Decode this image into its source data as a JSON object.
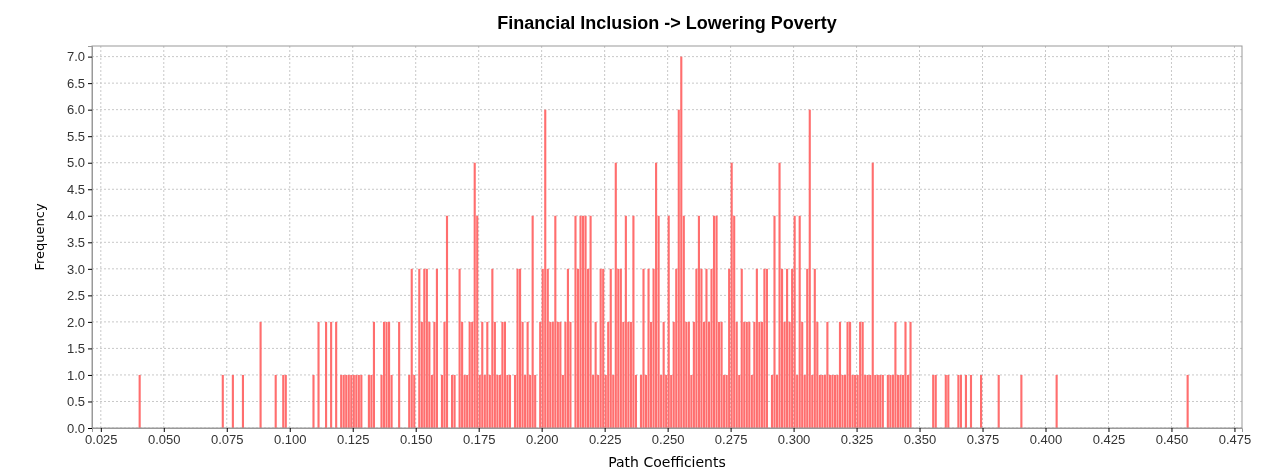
{
  "chart_data": {
    "type": "histogram",
    "title": "Financial Inclusion -> Lowering Poverty",
    "xlabel": "Path Coefficients",
    "ylabel": "Frequency",
    "color": "#ff6666",
    "grid": true,
    "xlim": [
      0.0215,
      0.478
    ],
    "ylim": [
      0,
      7.2
    ],
    "xticks": [
      0.025,
      {
        "value": 0.05,
        "label": "0.050"
      },
      0.075,
      {
        "value": 0.1,
        "label": "0.100"
      },
      0.125,
      {
        "value": 0.15,
        "label": "0.150"
      },
      0.175,
      {
        "value": 0.2,
        "label": "0.200"
      },
      0.225,
      {
        "value": 0.25,
        "label": "0.250"
      },
      0.275,
      {
        "value": 0.3,
        "label": "0.300"
      },
      0.325,
      {
        "value": 0.35,
        "label": "0.350"
      },
      0.375,
      {
        "value": 0.4,
        "label": "0.400"
      },
      0.425,
      {
        "value": 0.45,
        "label": "0.450"
      },
      0.475
    ],
    "yticks": [
      {
        "value": 0,
        "label": "0.0"
      },
      0.5,
      {
        "value": 1,
        "label": "1.0"
      },
      1.5,
      {
        "value": 2,
        "label": "2.0"
      },
      2.5,
      {
        "value": 3,
        "label": "3.0"
      },
      3.5,
      {
        "value": 4,
        "label": "4.0"
      },
      4.5,
      {
        "value": 5,
        "label": "5.0"
      },
      5.5,
      {
        "value": 6,
        "label": "6.0"
      },
      6.5,
      {
        "value": 7,
        "label": "7.0"
      }
    ],
    "bins": [
      0.04,
      0.041,
      0.042,
      0.043,
      0.044,
      0.045,
      0.046,
      0.047,
      0.048,
      0.049,
      0.05,
      0.051,
      0.052,
      0.053,
      0.054,
      0.055,
      0.056,
      0.057,
      0.058,
      0.059,
      0.06,
      0.061,
      0.062,
      0.063,
      0.064,
      0.065,
      0.066,
      0.067,
      0.068,
      0.069,
      0.07,
      0.071,
      0.072,
      0.073,
      0.074,
      0.075,
      0.076,
      0.077,
      0.078,
      0.079,
      0.08,
      0.081,
      0.082,
      0.083,
      0.084,
      0.085,
      0.086,
      0.087,
      0.088,
      0.089,
      0.09,
      0.091,
      0.092,
      0.093,
      0.094,
      0.095,
      0.096,
      0.097,
      0.098,
      0.099,
      0.1,
      0.101,
      0.102,
      0.103,
      0.104,
      0.105,
      0.106,
      0.107,
      0.108,
      0.109,
      0.11,
      0.111,
      0.112,
      0.113,
      0.114,
      0.115,
      0.116,
      0.117,
      0.118,
      0.119,
      0.12,
      0.121,
      0.122,
      0.123,
      0.124,
      0.125,
      0.126,
      0.127,
      0.128,
      0.129,
      0.13,
      0.131,
      0.132,
      0.133,
      0.134,
      0.135,
      0.136,
      0.137,
      0.138,
      0.139,
      0.14,
      0.141,
      0.142,
      0.143,
      0.144,
      0.145,
      0.146,
      0.147,
      0.148,
      0.149,
      0.15,
      0.151,
      0.152,
      0.153,
      0.154,
      0.155,
      0.156,
      0.157,
      0.158,
      0.159,
      0.16,
      0.161,
      0.162,
      0.163,
      0.164,
      0.165,
      0.166,
      0.167,
      0.168,
      0.169,
      0.17,
      0.171,
      0.172,
      0.173,
      0.174,
      0.175,
      0.176,
      0.177,
      0.178,
      0.179,
      0.18,
      0.181,
      0.182,
      0.183,
      0.184,
      0.185,
      0.186,
      0.187,
      0.188,
      0.189,
      0.19,
      0.191,
      0.192,
      0.193,
      0.194,
      0.195,
      0.196,
      0.197,
      0.198,
      0.199,
      0.2,
      0.201,
      0.202,
      0.203,
      0.204,
      0.205,
      0.206,
      0.207,
      0.208,
      0.209,
      0.21,
      0.211,
      0.212,
      0.213,
      0.214,
      0.215,
      0.216,
      0.217,
      0.218,
      0.219,
      0.22,
      0.221,
      0.222,
      0.223,
      0.224,
      0.225,
      0.226,
      0.227,
      0.228,
      0.229,
      0.23,
      0.231,
      0.232,
      0.233,
      0.234,
      0.235,
      0.236,
      0.237,
      0.238,
      0.239,
      0.24,
      0.241,
      0.242,
      0.243,
      0.244,
      0.245,
      0.246,
      0.247,
      0.248,
      0.249,
      0.25,
      0.251,
      0.252,
      0.253,
      0.254,
      0.255,
      0.256,
      0.257,
      0.258,
      0.259,
      0.26,
      0.261,
      0.262,
      0.263,
      0.264,
      0.265,
      0.266,
      0.267,
      0.268,
      0.269,
      0.27,
      0.271,
      0.272,
      0.273,
      0.274,
      0.275,
      0.276,
      0.277,
      0.278,
      0.279,
      0.28,
      0.281,
      0.282,
      0.283,
      0.284,
      0.285,
      0.286,
      0.287,
      0.288,
      0.289,
      0.29,
      0.291,
      0.292,
      0.293,
      0.294,
      0.295,
      0.296,
      0.297,
      0.298,
      0.299,
      0.3,
      0.301,
      0.302,
      0.303,
      0.304,
      0.305,
      0.306,
      0.307,
      0.308,
      0.309,
      0.31,
      0.311,
      0.312,
      0.313,
      0.314,
      0.315,
      0.316,
      0.317,
      0.318,
      0.319,
      0.32,
      0.321,
      0.322,
      0.323,
      0.324,
      0.325,
      0.326,
      0.327,
      0.328,
      0.329,
      0.33,
      0.331,
      0.332,
      0.333,
      0.334,
      0.335,
      0.336,
      0.337,
      0.338,
      0.339,
      0.34,
      0.341,
      0.342,
      0.343,
      0.344,
      0.345,
      0.346,
      0.347,
      0.348,
      0.349,
      0.35,
      0.351,
      0.352,
      0.353,
      0.354,
      0.355,
      0.356,
      0.357,
      0.358,
      0.359,
      0.36,
      0.361,
      0.362,
      0.363,
      0.364,
      0.365,
      0.366,
      0.367,
      0.368,
      0.369,
      0.37,
      0.371,
      0.372,
      0.373,
      0.374,
      0.375,
      0.376,
      0.377,
      0.378,
      0.379,
      0.38,
      0.381,
      0.382,
      0.383,
      0.384,
      0.385,
      0.386,
      0.387,
      0.388,
      0.389,
      0.39,
      0.391,
      0.392,
      0.393,
      0.394,
      0.395,
      0.396,
      0.397,
      0.398,
      0.399,
      0.4,
      0.401,
      0.402,
      0.403,
      0.404,
      0.405,
      0.406,
      0.407,
      0.408,
      0.409,
      0.41,
      0.411,
      0.412,
      0.413,
      0.414,
      0.415,
      0.416,
      0.417,
      0.418,
      0.419,
      0.42,
      0.421,
      0.422,
      0.423,
      0.424,
      0.425,
      0.426,
      0.427,
      0.428,
      0.429,
      0.43,
      0.431,
      0.432,
      0.433,
      0.434,
      0.435,
      0.436,
      0.437,
      0.438,
      0.439,
      0.44,
      0.441,
      0.442,
      0.443,
      0.444,
      0.445,
      0.446,
      0.447,
      0.448,
      0.449,
      0.45,
      0.451,
      0.452,
      0.453,
      0.454,
      0.455,
      0.456,
      0.457
    ],
    "values": [
      1,
      0,
      0,
      0,
      0,
      0,
      0,
      0,
      0,
      0,
      0,
      0,
      0,
      0,
      0,
      0,
      0,
      0,
      0,
      0,
      0,
      0,
      0,
      0,
      0,
      0,
      0,
      0,
      0,
      0,
      0,
      0,
      0,
      1,
      0,
      0,
      0,
      1,
      0,
      0,
      0,
      1,
      0,
      0,
      0,
      0,
      0,
      0,
      2,
      0,
      0,
      0,
      0,
      0,
      1,
      0,
      0,
      1,
      1,
      0,
      0,
      0,
      0,
      0,
      0,
      0,
      0,
      0,
      0,
      1,
      0,
      2,
      0,
      0,
      2,
      0,
      2,
      0,
      2,
      0,
      1,
      1,
      1,
      1,
      1,
      1,
      1,
      1,
      1,
      0,
      0,
      1,
      1,
      2,
      0,
      0,
      1,
      2,
      2,
      2,
      1,
      0,
      0,
      2,
      0,
      0,
      0,
      1,
      3,
      1,
      0,
      3,
      2,
      3,
      3,
      2,
      1,
      2,
      3,
      0,
      1,
      2,
      4,
      0,
      1,
      1,
      0,
      3,
      2,
      1,
      1,
      2,
      2,
      5,
      4,
      1,
      2,
      1,
      2,
      1,
      3,
      2,
      1,
      1,
      2,
      2,
      1,
      1,
      0,
      1,
      3,
      3,
      2,
      1,
      2,
      1,
      4,
      1,
      0,
      2,
      3,
      6,
      3,
      2,
      2,
      4,
      2,
      2,
      1,
      2,
      3,
      2,
      0,
      4,
      3,
      4,
      4,
      4,
      3,
      4,
      1,
      2,
      1,
      3,
      3,
      1,
      2,
      3,
      1,
      5,
      3,
      3,
      2,
      4,
      2,
      2,
      4,
      1,
      0,
      1,
      3,
      1,
      3,
      2,
      3,
      5,
      4,
      1,
      2,
      1,
      4,
      1,
      2,
      3,
      6,
      7,
      4,
      2,
      2,
      1,
      2,
      3,
      4,
      3,
      2,
      3,
      2,
      3,
      4,
      4,
      2,
      2,
      1,
      1,
      3,
      5,
      4,
      2,
      1,
      3,
      2,
      2,
      2,
      1,
      2,
      3,
      2,
      2,
      3,
      3,
      0,
      1,
      4,
      1,
      5,
      3,
      2,
      3,
      2,
      3,
      4,
      1,
      4,
      2,
      1,
      3,
      6,
      1,
      3,
      2,
      1,
      1,
      1,
      2,
      1,
      1,
      1,
      1,
      2,
      1,
      1,
      2,
      2,
      1,
      1,
      1,
      2,
      2,
      1,
      1,
      1,
      5,
      1,
      1,
      1,
      1,
      0,
      1,
      1,
      1,
      2,
      1,
      1,
      1,
      2,
      1,
      2,
      0,
      0,
      0,
      0,
      0,
      0,
      0,
      0,
      1,
      1,
      0,
      0,
      0,
      1,
      1,
      0,
      0,
      0,
      1,
      1,
      0,
      1,
      0,
      1,
      0,
      0,
      0,
      1,
      0,
      0,
      0,
      0,
      0,
      0,
      1,
      0,
      0,
      0,
      0,
      0,
      0,
      0,
      0,
      1,
      0,
      0,
      0,
      0,
      0,
      0,
      0,
      0,
      0,
      0,
      0,
      0,
      0,
      1,
      0,
      0,
      0,
      0,
      0,
      0,
      0,
      0,
      0,
      0,
      0,
      0,
      0,
      0,
      0,
      0,
      0,
      0,
      0,
      0,
      0,
      0,
      0,
      0,
      0,
      0,
      0,
      0,
      0,
      0,
      0,
      0,
      0,
      0,
      0,
      0,
      0,
      0,
      0,
      0,
      0,
      0,
      0,
      0,
      0,
      0,
      0,
      0,
      0,
      0,
      0,
      1
    ]
  }
}
